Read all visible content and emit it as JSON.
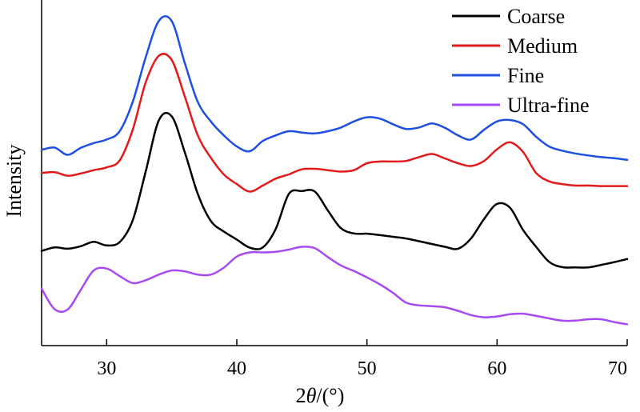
{
  "chart_data": {
    "type": "line",
    "xlabel": "2θ/(°)",
    "ylabel": "Intensity",
    "xlim": [
      25,
      70
    ],
    "ylim": [
      0,
      1
    ],
    "xticks": [
      30,
      40,
      50,
      60,
      70
    ],
    "yticks_shown": false,
    "legend_position": "top-right",
    "series": [
      {
        "name": "Coarse",
        "color": "#000000",
        "x": [
          25,
          26,
          27,
          28,
          29,
          30,
          31,
          32,
          33,
          34,
          35,
          36,
          37,
          38,
          39,
          40,
          41,
          42,
          43,
          44,
          45,
          46,
          47,
          48,
          49,
          50,
          51,
          52,
          53,
          54,
          55,
          56,
          57,
          58,
          59,
          60,
          61,
          62,
          63,
          64,
          65,
          66,
          67,
          68,
          69,
          70
        ],
        "values": [
          0.285,
          0.298,
          0.293,
          0.302,
          0.318,
          0.305,
          0.317,
          0.395,
          0.57,
          0.753,
          0.768,
          0.64,
          0.49,
          0.393,
          0.355,
          0.326,
          0.297,
          0.298,
          0.365,
          0.49,
          0.5,
          0.498,
          0.43,
          0.367,
          0.348,
          0.347,
          0.342,
          0.336,
          0.33,
          0.32,
          0.31,
          0.3,
          0.293,
          0.33,
          0.4,
          0.454,
          0.44,
          0.36,
          0.3,
          0.246,
          0.227,
          0.226,
          0.226,
          0.235,
          0.245,
          0.256
        ]
      },
      {
        "name": "Medium",
        "color": "#e31a1c",
        "x": [
          25,
          26,
          27,
          28,
          29,
          30,
          31,
          32,
          33,
          34,
          35,
          36,
          37,
          38,
          39,
          40,
          41,
          42,
          43,
          44,
          45,
          46,
          47,
          48,
          49,
          50,
          51,
          52,
          53,
          54,
          55,
          56,
          57,
          58,
          59,
          60,
          61,
          62,
          63,
          64,
          65,
          66,
          67,
          68,
          69,
          70
        ],
        "values": [
          0.565,
          0.568,
          0.555,
          0.563,
          0.575,
          0.585,
          0.61,
          0.72,
          0.89,
          0.985,
          0.97,
          0.84,
          0.7,
          0.62,
          0.56,
          0.525,
          0.498,
          0.52,
          0.545,
          0.56,
          0.578,
          0.58,
          0.575,
          0.57,
          0.575,
          0.6,
          0.606,
          0.606,
          0.608,
          0.622,
          0.633,
          0.617,
          0.6,
          0.59,
          0.608,
          0.65,
          0.675,
          0.64,
          0.565,
          0.535,
          0.525,
          0.52,
          0.52,
          0.518,
          0.518,
          0.518
        ]
      },
      {
        "name": "Fine",
        "color": "#1f4fe0",
        "x": [
          25,
          26,
          27,
          28,
          29,
          30,
          31,
          32,
          33,
          34,
          35,
          36,
          37,
          38,
          39,
          40,
          41,
          42,
          43,
          44,
          45,
          46,
          47,
          48,
          49,
          50,
          51,
          52,
          53,
          54,
          55,
          56,
          57,
          58,
          59,
          60,
          61,
          62,
          63,
          64,
          65,
          66,
          67,
          68,
          69,
          70
        ],
        "values": [
          0.648,
          0.656,
          0.63,
          0.655,
          0.672,
          0.685,
          0.715,
          0.82,
          0.98,
          1.11,
          1.11,
          0.96,
          0.82,
          0.75,
          0.7,
          0.66,
          0.643,
          0.68,
          0.7,
          0.715,
          0.71,
          0.707,
          0.715,
          0.728,
          0.75,
          0.765,
          0.76,
          0.74,
          0.723,
          0.728,
          0.743,
          0.727,
          0.7,
          0.685,
          0.72,
          0.75,
          0.755,
          0.74,
          0.695,
          0.66,
          0.645,
          0.635,
          0.628,
          0.622,
          0.618,
          0.612
        ]
      },
      {
        "name": "Ultra-fine",
        "color": "#a64bf4",
        "x": [
          25,
          26,
          27,
          28,
          29,
          30,
          31,
          32,
          33,
          34,
          35,
          36,
          37,
          38,
          39,
          40,
          41,
          42,
          43,
          44,
          45,
          46,
          47,
          48,
          49,
          50,
          51,
          52,
          53,
          54,
          55,
          56,
          57,
          58,
          59,
          60,
          61,
          62,
          63,
          64,
          65,
          66,
          67,
          68,
          69,
          70
        ],
        "values": [
          0.15,
          0.076,
          0.075,
          0.145,
          0.215,
          0.222,
          0.195,
          0.17,
          0.18,
          0.2,
          0.215,
          0.212,
          0.2,
          0.2,
          0.225,
          0.265,
          0.28,
          0.28,
          0.282,
          0.29,
          0.3,
          0.295,
          0.263,
          0.233,
          0.213,
          0.19,
          0.165,
          0.135,
          0.1,
          0.09,
          0.087,
          0.083,
          0.07,
          0.055,
          0.047,
          0.05,
          0.058,
          0.06,
          0.052,
          0.043,
          0.035,
          0.035,
          0.04,
          0.04,
          0.03,
          0.022
        ]
      }
    ]
  }
}
